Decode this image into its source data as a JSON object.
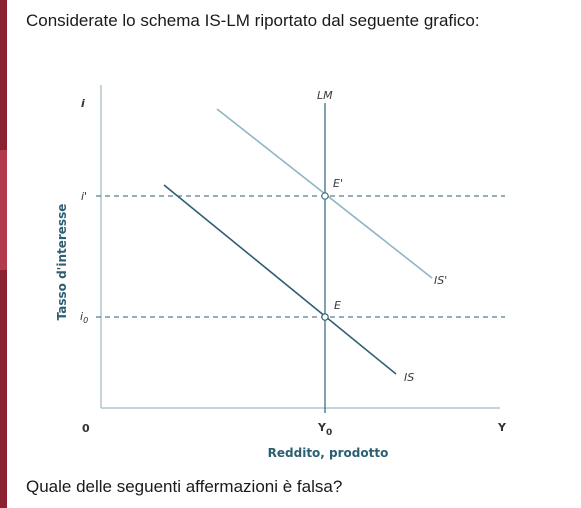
{
  "question": {
    "intro": "Considerate lo schema IS-LM riportato dal seguente grafico:",
    "prompt": "Quale delle seguenti affermazioni è falsa?"
  },
  "diagram": {
    "y_axis_title": "Tasso d'interesse",
    "y_axis_symbol": "i",
    "x_axis_title": "Reddito, prodotto",
    "x_axis_symbol": "Y",
    "origin_label": "0",
    "curves": {
      "lm": "LM",
      "is": "IS",
      "is_shifted": "IS'"
    },
    "points": {
      "e": "E",
      "e_shifted": "E'"
    },
    "ticks": {
      "i_prime": "i'",
      "i0_base": "i",
      "i0_sub": "0",
      "y0_base": "Y",
      "y0_sub": "0"
    },
    "colors": {
      "is_curve": "#2e5f72",
      "is_shifted_curve": "#8fb6c4",
      "axis": "#8aa8b5",
      "lm_line": "#3d6f83",
      "label_accent": "#2d5f73"
    }
  }
}
